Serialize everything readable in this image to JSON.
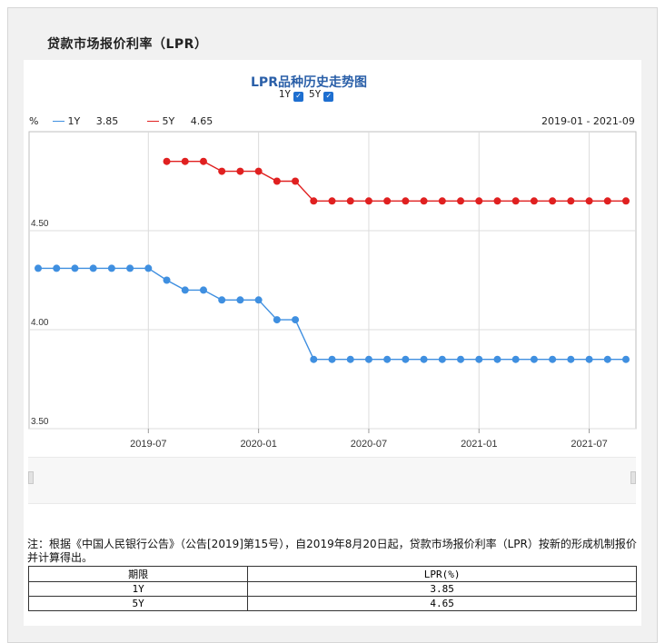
{
  "page": {
    "title": "贷款市场报价利率（LPR）"
  },
  "chart_header": {
    "title": "LPR品种历史走势图",
    "toggle_1y_label": "1Y",
    "toggle_5y_label": "5Y",
    "toggle_1y_checked": true,
    "toggle_5y_checked": true
  },
  "legend": {
    "unit": "%",
    "items": [
      {
        "name": "1Y",
        "value": "3.85",
        "color": "#3f8fe0"
      },
      {
        "name": "5Y",
        "value": "4.65",
        "color": "#e02020"
      }
    ],
    "date_range": "2019-01 - 2021-09"
  },
  "chart_data": {
    "type": "line",
    "ylim": [
      3.5,
      5.0
    ],
    "yticks": [
      "4.50",
      "4.00",
      "3.50"
    ],
    "xticks": [
      "2019-07",
      "2020-01",
      "2020-07",
      "2021-01",
      "2021-07"
    ],
    "grid": true,
    "series": [
      {
        "name": "1Y",
        "color": "#3f8fe0",
        "x": [
          "2019-01",
          "2019-02",
          "2019-03",
          "2019-04",
          "2019-05",
          "2019-06",
          "2019-07",
          "2019-08",
          "2019-09",
          "2019-10",
          "2019-11",
          "2019-12",
          "2020-01",
          "2020-02",
          "2020-03",
          "2020-04",
          "2020-05",
          "2020-06",
          "2020-07",
          "2020-08",
          "2020-09",
          "2020-10",
          "2020-11",
          "2020-12",
          "2021-01",
          "2021-02",
          "2021-03",
          "2021-04",
          "2021-05",
          "2021-06",
          "2021-07",
          "2021-08",
          "2021-09"
        ],
        "values": [
          4.31,
          4.31,
          4.31,
          4.31,
          4.31,
          4.31,
          4.31,
          4.25,
          4.2,
          4.2,
          4.15,
          4.15,
          4.15,
          4.05,
          4.05,
          3.85,
          3.85,
          3.85,
          3.85,
          3.85,
          3.85,
          3.85,
          3.85,
          3.85,
          3.85,
          3.85,
          3.85,
          3.85,
          3.85,
          3.85,
          3.85,
          3.85,
          3.85
        ]
      },
      {
        "name": "5Y",
        "color": "#e02020",
        "x": [
          "2019-08",
          "2019-09",
          "2019-10",
          "2019-11",
          "2019-12",
          "2020-01",
          "2020-02",
          "2020-03",
          "2020-04",
          "2020-05",
          "2020-06",
          "2020-07",
          "2020-08",
          "2020-09",
          "2020-10",
          "2020-11",
          "2020-12",
          "2021-01",
          "2021-02",
          "2021-03",
          "2021-04",
          "2021-05",
          "2021-06",
          "2021-07",
          "2021-08",
          "2021-09"
        ],
        "values": [
          4.85,
          4.85,
          4.85,
          4.8,
          4.8,
          4.8,
          4.75,
          4.75,
          4.65,
          4.65,
          4.65,
          4.65,
          4.65,
          4.65,
          4.65,
          4.65,
          4.65,
          4.65,
          4.65,
          4.65,
          4.65,
          4.65,
          4.65,
          4.65,
          4.65,
          4.65
        ]
      }
    ]
  },
  "note": "注：根据《中国人民银行公告》（公告[2019]第15号），自2019年8月20日起，贷款市场报价利率（LPR）按新的形成机制报价并计算得出。",
  "table": {
    "headers": [
      "期限",
      "LPR(%)"
    ],
    "rows": [
      [
        "1Y",
        "3.85"
      ],
      [
        "5Y",
        "4.65"
      ]
    ]
  }
}
